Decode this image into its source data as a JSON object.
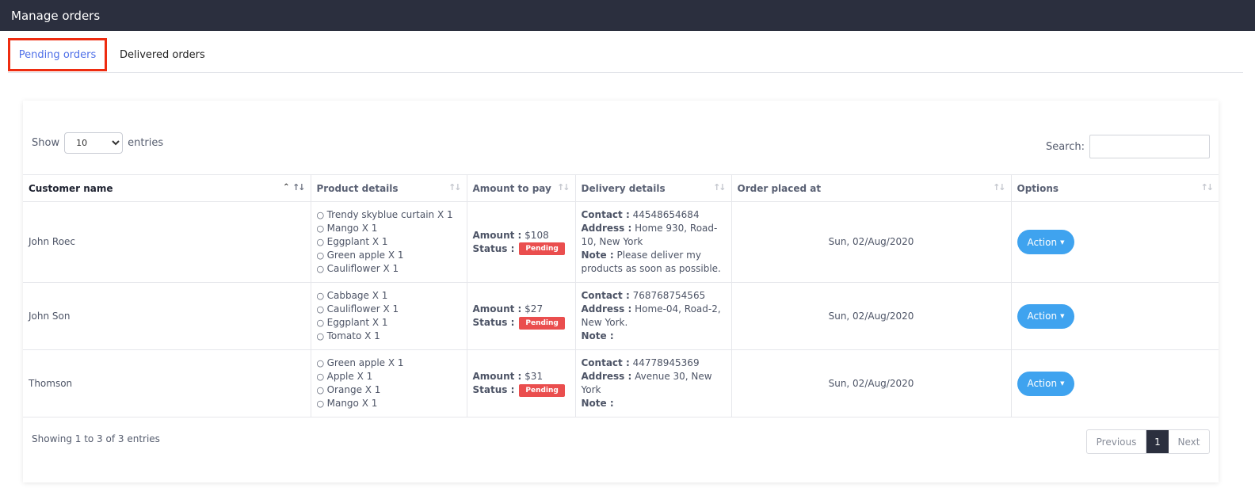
{
  "header": {
    "title": "Manage orders"
  },
  "tabs": [
    {
      "label": "Pending orders",
      "active": true
    },
    {
      "label": "Delivered orders",
      "active": false
    }
  ],
  "controls": {
    "show_label": "Show",
    "entries_value": "10",
    "entries_label": "entries",
    "search_label": "Search:",
    "search_value": ""
  },
  "table": {
    "columns": [
      "Customer name",
      "Product details",
      "Amount to pay",
      "Delivery details",
      "Order placed at",
      "Options"
    ],
    "rows": [
      {
        "customer": "John Roec",
        "products": [
          "Trendy skyblue curtain X 1",
          "Mango X 1",
          "Eggplant X 1",
          "Green apple X 1",
          "Cauliflower X 1"
        ],
        "amount_label": "Amount :",
        "amount": "$108",
        "status_label": "Status :",
        "status": "Pending",
        "contact_label": "Contact :",
        "contact": "44548654684",
        "address_label": "Address :",
        "address": "Home 930, Road-10, New York",
        "note_label": "Note :",
        "note": "Please deliver my products as soon as possible.",
        "date": "Sun, 02/Aug/2020",
        "action": "Action"
      },
      {
        "customer": "John Son",
        "products": [
          "Cabbage X 1",
          "Cauliflower X 1",
          "Eggplant X 1",
          "Tomato X 1"
        ],
        "amount_label": "Amount :",
        "amount": "$27",
        "status_label": "Status :",
        "status": "Pending",
        "contact_label": "Contact :",
        "contact": "768768754565",
        "address_label": "Address :",
        "address": "Home-04, Road-2, New York.",
        "note_label": "Note :",
        "note": "",
        "date": "Sun, 02/Aug/2020",
        "action": "Action"
      },
      {
        "customer": "Thomson",
        "products": [
          "Green apple X 1",
          "Apple X 1",
          "Orange X 1",
          "Mango X 1"
        ],
        "amount_label": "Amount :",
        "amount": "$31",
        "status_label": "Status :",
        "status": "Pending",
        "contact_label": "Contact :",
        "contact": "44778945369",
        "address_label": "Address :",
        "address": "Avenue 30, New York",
        "note_label": "Note :",
        "note": "",
        "date": "Sun, 02/Aug/2020",
        "action": "Action"
      }
    ]
  },
  "footer": {
    "info": "Showing 1 to 3 of 3 entries",
    "previous": "Previous",
    "page": "1",
    "next": "Next"
  },
  "icons": {
    "sort_icon": "sort-arrows-icon",
    "dropdown_caret": "caret-down-icon"
  },
  "colors": {
    "header_bg": "#2b2f3e",
    "active_tab_text": "#4f70e8",
    "highlight_box": "#ee2c10",
    "action_button": "#3fa3ef",
    "pending_badge": "#ea4e4e"
  }
}
